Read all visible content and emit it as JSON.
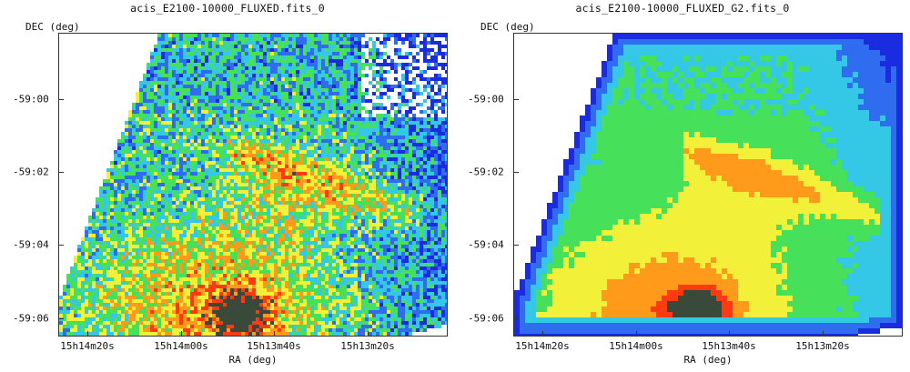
{
  "panels": [
    {
      "title": "acis_E2100-10000_FLUXED.fits_0",
      "ylabel": "DEC (deg)",
      "xlabel": "RA (deg)",
      "yticks": [
        "-59:00",
        "-59:02",
        "-59:04",
        "-59:06"
      ],
      "xticks": [
        "15h14m20s",
        "15h14m00s",
        "15h13m40s",
        "15h13m20s"
      ],
      "style": "pixelated"
    },
    {
      "title": "acis_E2100-10000_FLUXED_G2.fits_0",
      "ylabel": "DEC (deg)",
      "xlabel": "RA (deg)",
      "yticks": [
        "-59:00",
        "-59:02",
        "-59:04",
        "-59:06"
      ],
      "xticks": [
        "15h14m20s",
        "15h14m00s",
        "15h13m40s",
        "15h13m20s"
      ],
      "style": "smoothed"
    }
  ],
  "colors": {
    "bg": "#ffffff",
    "dark_blue": "#1a2be0",
    "blue": "#2f6cf0",
    "cyan": "#35c8e6",
    "green": "#46e05a",
    "yellow": "#f3f03a",
    "orange": "#ff9a1a",
    "red": "#ff3a10",
    "dark": "#3a4a3a"
  }
}
